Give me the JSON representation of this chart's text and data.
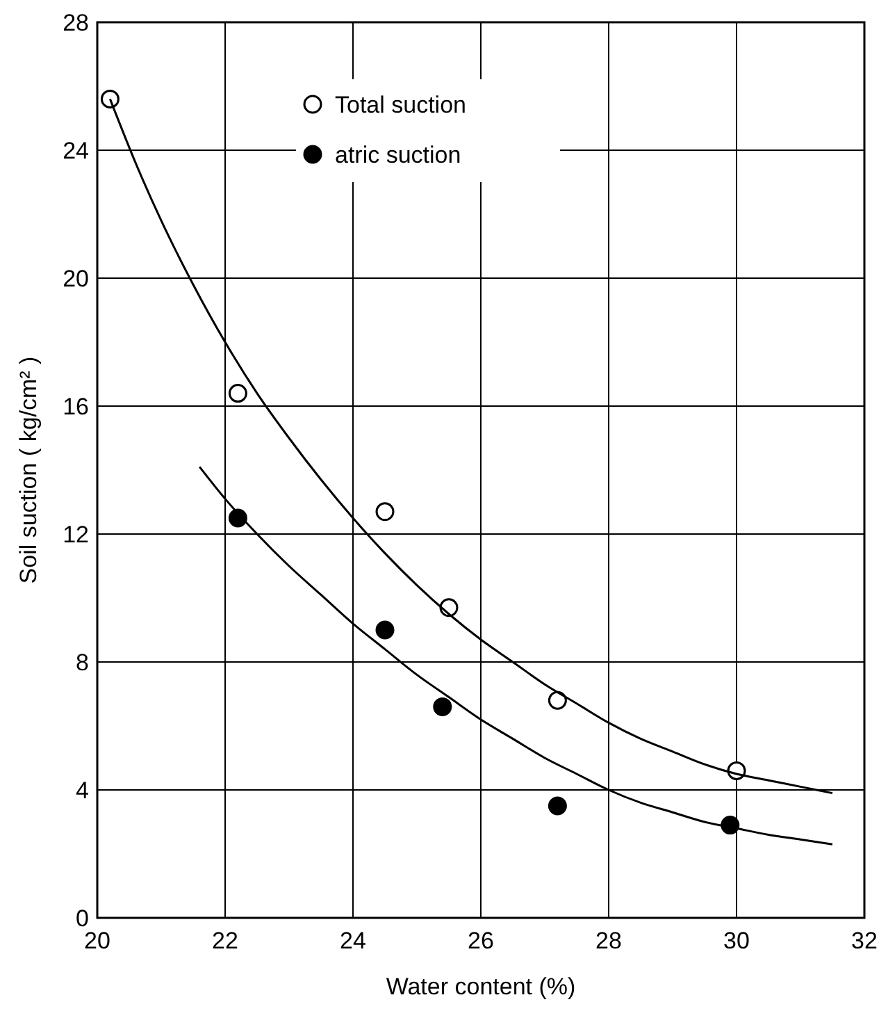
{
  "chart_data": {
    "type": "scatter",
    "xlabel": "Water content  (%)",
    "ylabel": "Soil suction ( kg/cm² )",
    "xlim": [
      20,
      32
    ],
    "ylim": [
      0,
      28
    ],
    "xticks": [
      20,
      22,
      24,
      26,
      28,
      30,
      32
    ],
    "yticks": [
      0,
      4,
      8,
      12,
      16,
      20,
      24,
      28
    ],
    "grid": true,
    "legend": "top",
    "marker": "circle",
    "series": [
      {
        "name": "Total suction",
        "color": "#ffffff",
        "x": [
          20.2,
          22.2,
          24.5,
          25.5,
          27.2,
          30
        ],
        "values": [
          25.6,
          16.4,
          12.7,
          9.7,
          6.8,
          4.6
        ]
      },
      {
        "name": "atric suction",
        "color": "#000000",
        "x": [
          22.2,
          24.5,
          25.4,
          27.2,
          29.9
        ],
        "values": [
          12.5,
          9.0,
          6.6,
          3.5,
          2.9
        ]
      },
      {
        "type": "line",
        "color": "#000000",
        "marker": "none",
        "x": [
          20.2,
          20.6,
          21,
          21.5,
          22,
          22.5,
          23,
          23.5,
          24,
          24.5,
          25,
          25.5,
          26,
          26.5,
          27,
          27.5,
          28,
          28.5,
          29,
          29.5,
          30,
          30.5,
          31,
          31.5
        ],
        "values": [
          25.6,
          23.6,
          21.8,
          19.8,
          18.0,
          16.4,
          15.0,
          13.7,
          12.5,
          11.4,
          10.4,
          9.5,
          8.7,
          8.0,
          7.3,
          6.7,
          6.1,
          5.6,
          5.2,
          4.8,
          4.5,
          4.3,
          4.1,
          3.9
        ]
      },
      {
        "type": "line",
        "color": "#000000",
        "marker": "none",
        "x": [
          21.6,
          22,
          22.5,
          23,
          23.5,
          24,
          24.5,
          25,
          25.5,
          26,
          26.5,
          27,
          27.5,
          28,
          28.5,
          29,
          29.5,
          30,
          30.5,
          31,
          31.5
        ],
        "values": [
          14.1,
          13.1,
          12.0,
          11.0,
          10.1,
          9.2,
          8.4,
          7.6,
          6.9,
          6.2,
          5.6,
          5.0,
          4.5,
          4.0,
          3.6,
          3.3,
          3.0,
          2.8,
          2.6,
          2.45,
          2.3
        ]
      }
    ]
  }
}
